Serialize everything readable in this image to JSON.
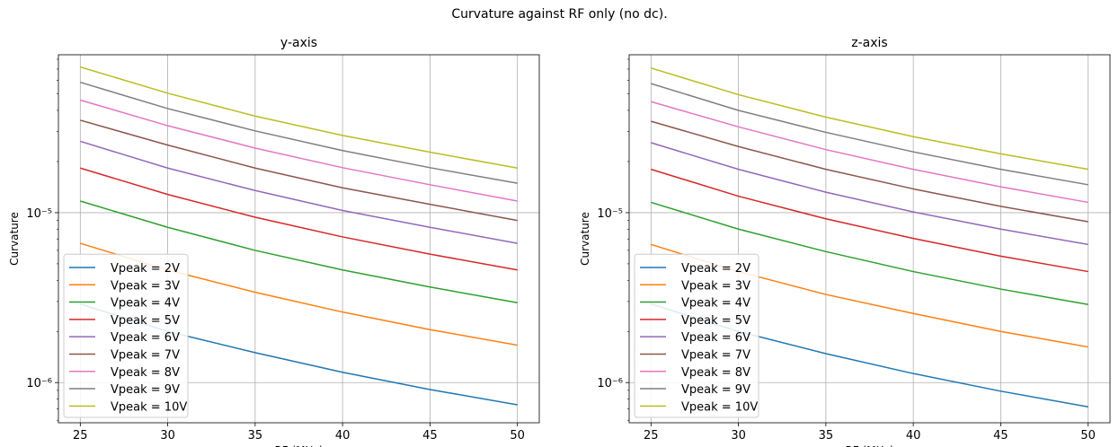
{
  "figure": {
    "suptitle": "Curvature against RF only (no dc)."
  },
  "chart_data": [
    {
      "type": "line",
      "title": "y-axis",
      "xlabel": "RF (MHz)",
      "ylabel": "Curvature",
      "yscale": "log",
      "xlim": [
        23.75,
        51.25
      ],
      "ylim": [
        5.8e-07,
        8.5e-05
      ],
      "xticks": [
        25,
        30,
        35,
        40,
        45,
        50
      ],
      "yticks": [
        {
          "value": 1e-06,
          "label": "10⁻⁶"
        },
        {
          "value": 1e-05,
          "label": "10⁻⁵"
        }
      ],
      "grid": true,
      "legend_position": "lower left",
      "x": [
        25,
        30,
        35,
        40,
        45,
        50
      ],
      "series": [
        {
          "name": "Vpeak = 2V",
          "color": "#1f77b4",
          "values": [
            2.9e-06,
            2e-06,
            1.5e-06,
            1.15e-06,
            9.1e-07,
            7.4e-07
          ]
        },
        {
          "name": "Vpeak = 3V",
          "color": "#ff7f0e",
          "values": [
            6.6e-06,
            4.6e-06,
            3.4e-06,
            2.6e-06,
            2.05e-06,
            1.66e-06
          ]
        },
        {
          "name": "Vpeak = 4V",
          "color": "#2ca02c",
          "values": [
            1.17e-05,
            8.2e-06,
            6e-06,
            4.6e-06,
            3.65e-06,
            2.95e-06
          ]
        },
        {
          "name": "Vpeak = 5V",
          "color": "#d62728",
          "values": [
            1.83e-05,
            1.28e-05,
            9.4e-06,
            7.2e-06,
            5.7e-06,
            4.6e-06
          ]
        },
        {
          "name": "Vpeak = 6V",
          "color": "#9467bd",
          "values": [
            2.63e-05,
            1.83e-05,
            1.35e-05,
            1.03e-05,
            8.2e-06,
            6.6e-06
          ]
        },
        {
          "name": "Vpeak = 7V",
          "color": "#8c564b",
          "values": [
            3.5e-05,
            2.5e-05,
            1.83e-05,
            1.4e-05,
            1.12e-05,
            9e-06
          ]
        },
        {
          "name": "Vpeak = 8V",
          "color": "#e377c2",
          "values": [
            4.6e-05,
            3.25e-05,
            2.4e-05,
            1.84e-05,
            1.46e-05,
            1.17e-05
          ]
        },
        {
          "name": "Vpeak = 9V",
          "color": "#7f7f7f",
          "values": [
            5.85e-05,
            4.1e-05,
            3.03e-05,
            2.32e-05,
            1.84e-05,
            1.49e-05
          ]
        },
        {
          "name": "Vpeak = 10V",
          "color": "#bcbd22",
          "values": [
            7.2e-05,
            5.05e-05,
            3.7e-05,
            2.85e-05,
            2.27e-05,
            1.83e-05
          ]
        }
      ]
    },
    {
      "type": "line",
      "title": "z-axis",
      "xlabel": "RF (MHz)",
      "ylabel": "Curvature",
      "yscale": "log",
      "xlim": [
        23.75,
        51.25
      ],
      "ylim": [
        5.8e-07,
        8.5e-05
      ],
      "xticks": [
        25,
        30,
        35,
        40,
        45,
        50
      ],
      "yticks": [
        {
          "value": 1e-06,
          "label": "10⁻⁶"
        },
        {
          "value": 1e-05,
          "label": "10⁻⁵"
        }
      ],
      "grid": true,
      "legend_position": "lower left",
      "x": [
        25,
        30,
        35,
        40,
        45,
        50
      ],
      "series": [
        {
          "name": "Vpeak = 2V",
          "color": "#1f77b4",
          "values": [
            2.9e-06,
            2e-06,
            1.48e-06,
            1.13e-06,
            8.9e-07,
            7.2e-07
          ]
        },
        {
          "name": "Vpeak = 3V",
          "color": "#ff7f0e",
          "values": [
            6.5e-06,
            4.5e-06,
            3.3e-06,
            2.55e-06,
            2e-06,
            1.62e-06
          ]
        },
        {
          "name": "Vpeak = 4V",
          "color": "#2ca02c",
          "values": [
            1.15e-05,
            8e-06,
            5.9e-06,
            4.5e-06,
            3.55e-06,
            2.88e-06
          ]
        },
        {
          "name": "Vpeak = 5V",
          "color": "#d62728",
          "values": [
            1.8e-05,
            1.25e-05,
            9.2e-06,
            7.05e-06,
            5.55e-06,
            4.5e-06
          ]
        },
        {
          "name": "Vpeak = 6V",
          "color": "#9467bd",
          "values": [
            2.58e-05,
            1.8e-05,
            1.32e-05,
            1.01e-05,
            8e-06,
            6.5e-06
          ]
        },
        {
          "name": "Vpeak = 7V",
          "color": "#8c564b",
          "values": [
            3.45e-05,
            2.45e-05,
            1.8e-05,
            1.38e-05,
            1.09e-05,
            8.85e-06
          ]
        },
        {
          "name": "Vpeak = 8V",
          "color": "#e377c2",
          "values": [
            4.5e-05,
            3.2e-05,
            2.35e-05,
            1.8e-05,
            1.42e-05,
            1.15e-05
          ]
        },
        {
          "name": "Vpeak = 9V",
          "color": "#7f7f7f",
          "values": [
            5.75e-05,
            4e-05,
            2.97e-05,
            2.28e-05,
            1.8e-05,
            1.46e-05
          ]
        },
        {
          "name": "Vpeak = 10V",
          "color": "#bcbd22",
          "values": [
            7.1e-05,
            4.95e-05,
            3.65e-05,
            2.8e-05,
            2.22e-05,
            1.8e-05
          ]
        }
      ]
    }
  ]
}
